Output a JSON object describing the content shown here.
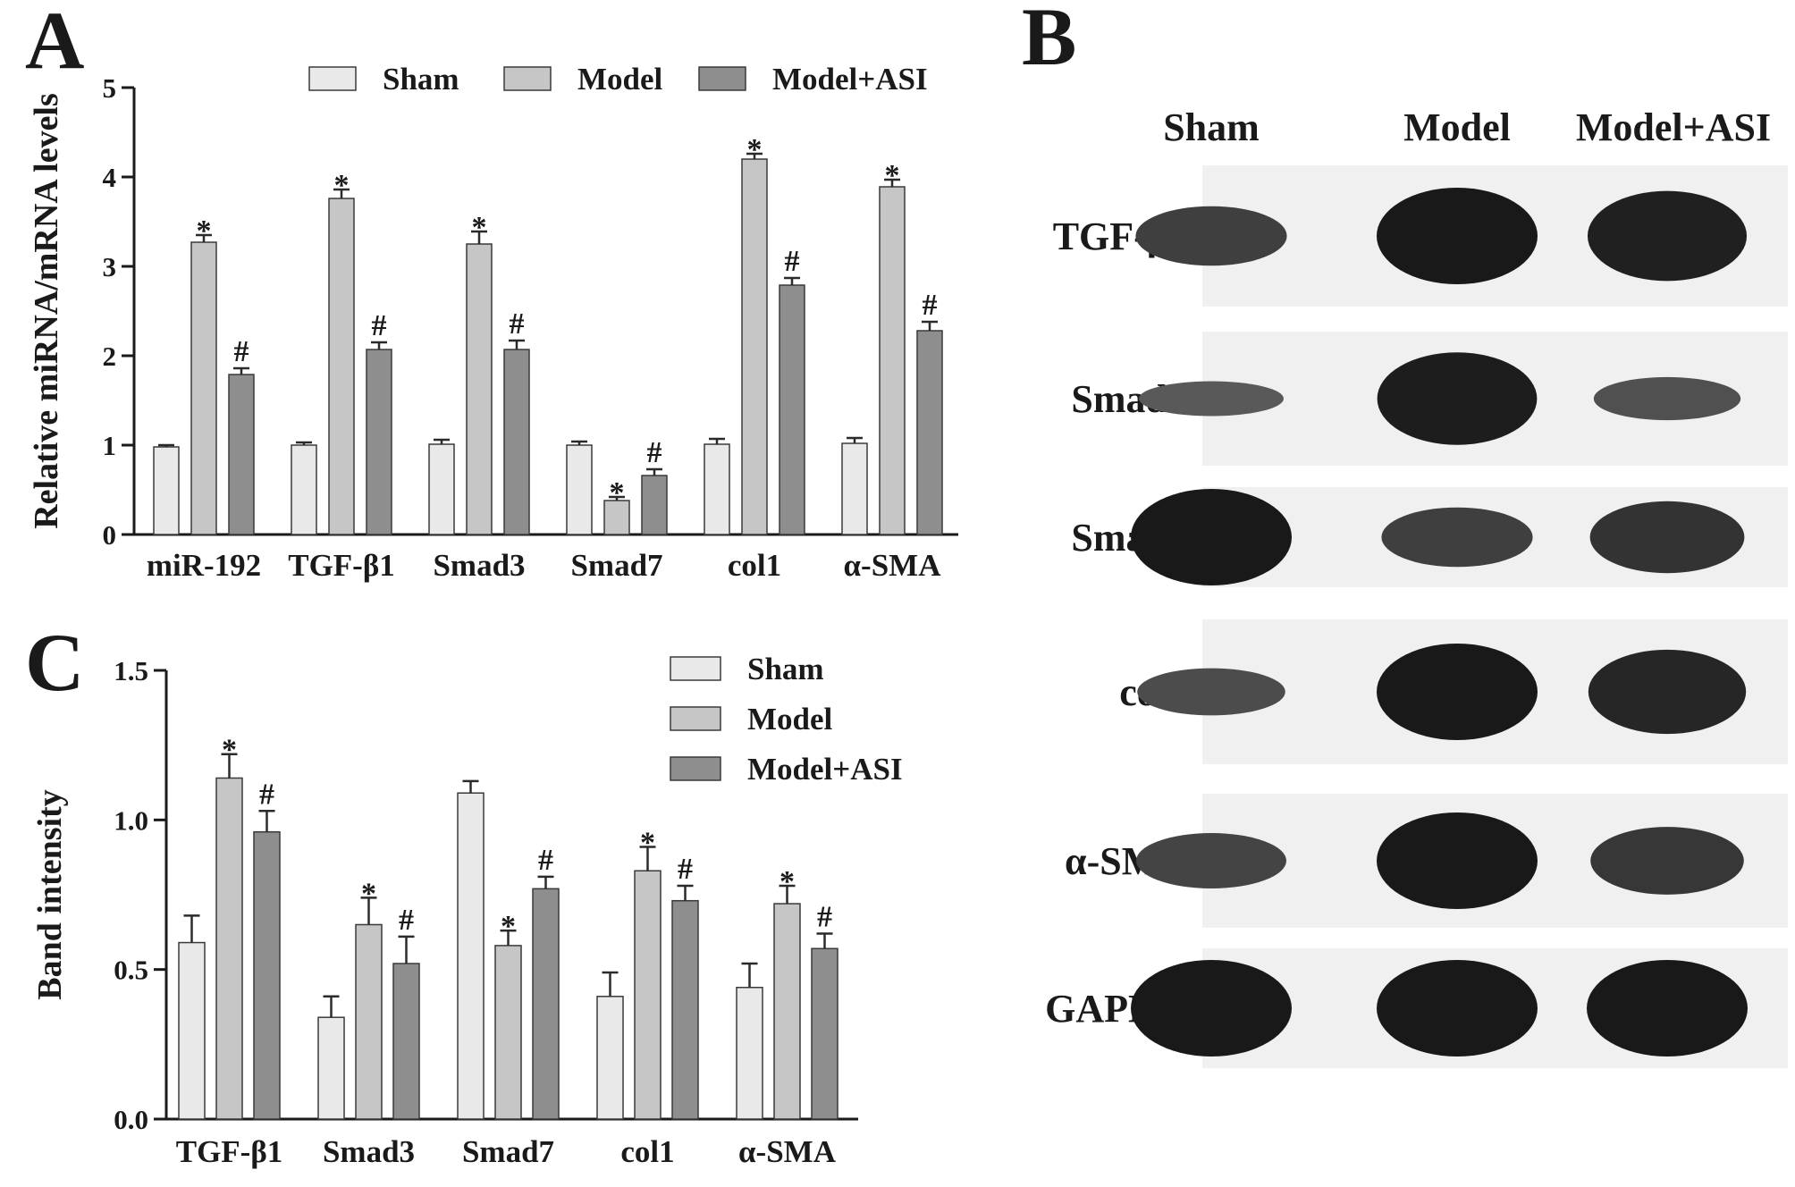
{
  "panels": {
    "a": {
      "letter": "A"
    },
    "b": {
      "letter": "B"
    },
    "c": {
      "letter": "C"
    }
  },
  "colors": {
    "sham": "#e9e9e9",
    "model": "#c6c6c6",
    "model_asi": "#8e8e8e",
    "axis": "#1a1a1a",
    "band": "#262626"
  },
  "chart_data": [
    {
      "id": "A",
      "type": "bar",
      "title": "",
      "xlabel": "",
      "ylabel": "Relative miRNA/mRNA levels",
      "ylim": [
        0,
        5
      ],
      "yticks": [
        "0",
        "1",
        "2",
        "3",
        "4",
        "5"
      ],
      "grid": false,
      "legend_position": "top",
      "categories": [
        "miR-192",
        "TGF-β1",
        "Smad3",
        "Smad7",
        "col1",
        "α-SMA"
      ],
      "series": [
        {
          "name": "Sham",
          "values": [
            0.98,
            1.0,
            1.01,
            1.0,
            1.01,
            1.02
          ],
          "errors": [
            0.02,
            0.03,
            0.05,
            0.04,
            0.06,
            0.06
          ],
          "marks": [
            "",
            "",
            "",
            "",
            "",
            ""
          ]
        },
        {
          "name": "Model",
          "values": [
            3.27,
            3.76,
            3.25,
            0.38,
            4.2,
            3.89
          ],
          "errors": [
            0.08,
            0.1,
            0.14,
            0.04,
            0.06,
            0.08
          ],
          "marks": [
            "*",
            "*",
            "*",
            "*",
            "*",
            "*"
          ]
        },
        {
          "name": "Model+ASI",
          "values": [
            1.79,
            2.07,
            2.07,
            0.66,
            2.79,
            2.28
          ],
          "errors": [
            0.07,
            0.08,
            0.1,
            0.07,
            0.08,
            0.1
          ],
          "marks": [
            "#",
            "#",
            "#",
            "#",
            "#",
            "#"
          ]
        }
      ]
    },
    {
      "id": "C",
      "type": "bar",
      "title": "",
      "xlabel": "",
      "ylabel": "Band intensity",
      "ylim": [
        0,
        1.5
      ],
      "yticks": [
        "0.0",
        "0.5",
        "1.0",
        "1.5"
      ],
      "grid": false,
      "legend_position": "top-right",
      "categories": [
        "TGF-β1",
        "Smad3",
        "Smad7",
        "col1",
        "α-SMA"
      ],
      "series": [
        {
          "name": "Sham",
          "values": [
            0.59,
            0.34,
            1.09,
            0.41,
            0.44
          ],
          "errors": [
            0.09,
            0.07,
            0.04,
            0.08,
            0.08
          ],
          "marks": [
            "",
            "",
            "",
            "",
            ""
          ]
        },
        {
          "name": "Model",
          "values": [
            1.14,
            0.65,
            0.58,
            0.83,
            0.72
          ],
          "errors": [
            0.08,
            0.09,
            0.05,
            0.08,
            0.06
          ],
          "marks": [
            "*",
            "*",
            "*",
            "*",
            "*"
          ]
        },
        {
          "name": "Model+ASI",
          "values": [
            0.96,
            0.52,
            0.77,
            0.73,
            0.57
          ],
          "errors": [
            0.07,
            0.09,
            0.04,
            0.05,
            0.05
          ],
          "marks": [
            "#",
            "#",
            "#",
            "#",
            "#"
          ]
        }
      ]
    }
  ],
  "western_blot": {
    "columns": [
      "Sham",
      "Model",
      "Model+ASI"
    ],
    "rows": [
      {
        "label": "TGF-β1",
        "intensity": [
          0.55,
          1.0,
          0.92
        ]
      },
      {
        "label": "Smad3",
        "intensity": [
          0.25,
          0.95,
          0.35
        ]
      },
      {
        "label": "Smad7",
        "intensity": [
          1.0,
          0.55,
          0.7
        ]
      },
      {
        "label": "col1",
        "intensity": [
          0.4,
          1.0,
          0.85
        ]
      },
      {
        "label": "α-SMA",
        "intensity": [
          0.5,
          1.0,
          0.65
        ]
      },
      {
        "label": "GAPDH",
        "intensity": [
          1.0,
          1.0,
          1.0
        ]
      }
    ]
  }
}
